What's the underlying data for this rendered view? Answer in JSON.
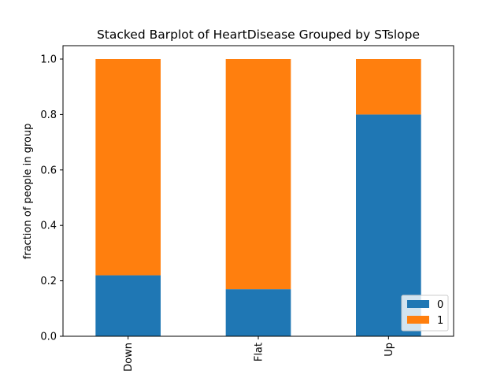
{
  "chart_data": {
    "type": "bar",
    "stacked": true,
    "title": "Stacked Barplot of HeartDisease Grouped by STslope",
    "xlabel": "",
    "ylabel": "fraction of people in group",
    "categories": [
      "Down",
      "Flat",
      "Up"
    ],
    "series": [
      {
        "name": "0",
        "color": "#1f77b4",
        "values": [
          0.22,
          0.17,
          0.8
        ]
      },
      {
        "name": "1",
        "color": "#ff7f0e",
        "values": [
          0.78,
          0.83,
          0.2
        ]
      }
    ],
    "ylim": [
      0,
      1.0
    ],
    "yticks": [
      "0.0",
      "0.2",
      "0.4",
      "0.6",
      "0.8",
      "1.0"
    ],
    "grid": false,
    "legend": {
      "position": "lower-right"
    }
  }
}
